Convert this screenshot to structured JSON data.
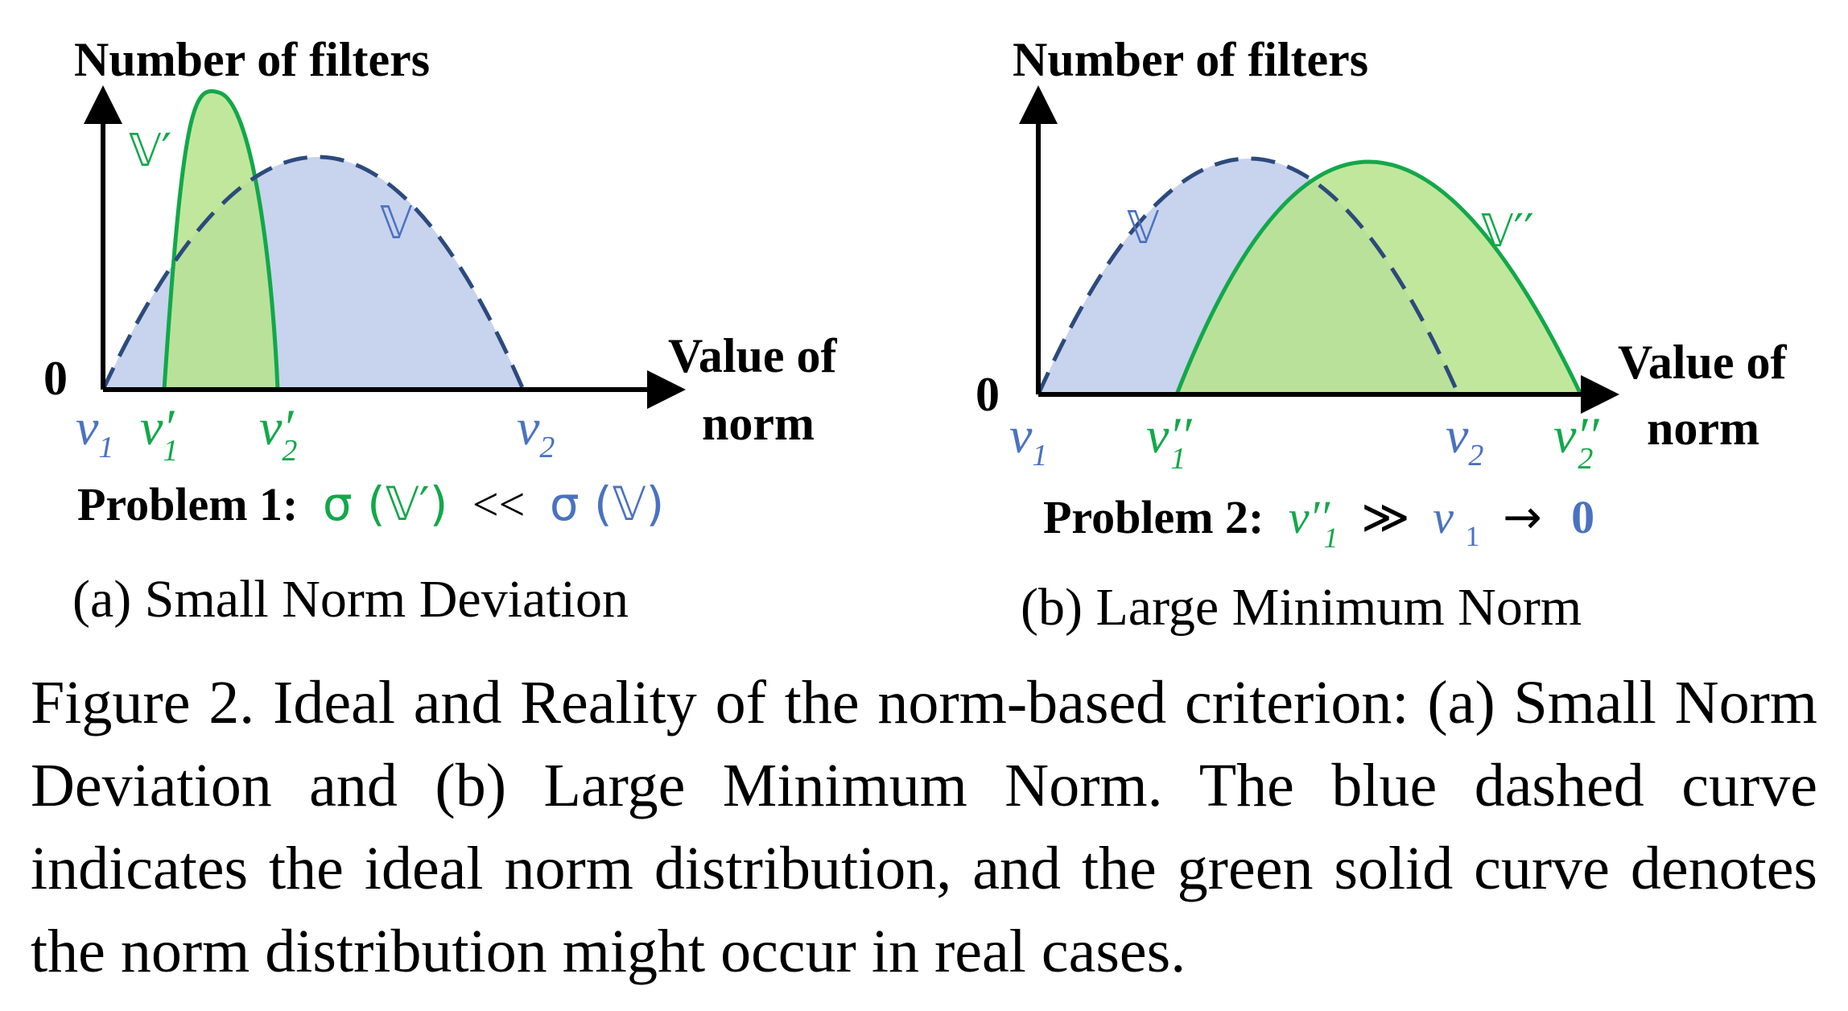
{
  "colors": {
    "blue": "#4a72c0",
    "dashed_blue": "#2c4a7c",
    "green": "#12a84a",
    "blue_fill": "#c8d3ee",
    "green_fill": "#b6e38b"
  },
  "panel_a": {
    "y_axis_label": "Number of filters",
    "x_axis_label_1": "Value of",
    "x_axis_label_2": "norm",
    "origin_label": "0",
    "ideal_label": "𝕍",
    "real_label": "𝕍′",
    "ticks": {
      "v1": "v",
      "v1_sub": "1",
      "v1p": "v′",
      "v1p_sub": "1",
      "v2p": "v′",
      "v2p_sub": "2",
      "v2": "v",
      "v2_sub": "2"
    },
    "problem_label": "Problem 1:",
    "problem_sigma_real": "σ (𝕍′)",
    "problem_op": "<<",
    "problem_sigma_ideal": "σ (𝕍)",
    "subcaption": "(a) Small Norm Deviation"
  },
  "panel_b": {
    "y_axis_label": "Number of filters",
    "x_axis_label_1": "Value of",
    "x_axis_label_2": "norm",
    "origin_label": "0",
    "ideal_label": "𝕍",
    "real_label": "𝕍′′",
    "ticks": {
      "v1": "v",
      "v1_sub": "1",
      "v1pp": "v′′",
      "v1pp_sub": "1",
      "v2": "v",
      "v2_sub": "2",
      "v2pp": "v′′",
      "v2pp_sub": "2"
    },
    "problem_label": "Problem 2:",
    "problem_v1pp": "v′′",
    "problem_v1pp_sub": "1",
    "problem_gg": "≫",
    "problem_v1": "v",
    "problem_v1_sub": "1",
    "problem_arrow": "→",
    "problem_zero": "0",
    "subcaption": "(b) Large Minimum Norm"
  },
  "caption": "Figure 2.  Ideal and Reality of the norm-based criterion: (a) Small Norm Deviation and (b) Large Minimum Norm. The blue dashed curve indicates the ideal norm distribution, and the green solid curve denotes the norm distribution might occur in real cases."
}
